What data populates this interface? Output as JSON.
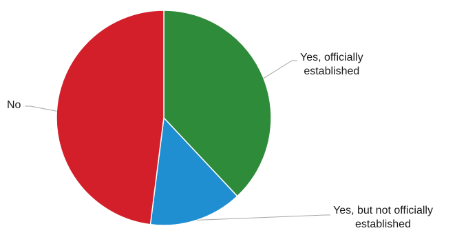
{
  "chart_data": {
    "type": "pie",
    "title": "",
    "slices": [
      {
        "name": "Yes, officially established",
        "label_lines": [
          "Yes, officially",
          "established"
        ],
        "value": 38,
        "color": "#2e8b3a"
      },
      {
        "name": "Yes, but not officially established",
        "label_lines": [
          "Yes, but not officially",
          "established"
        ],
        "value": 14,
        "color": "#1f8fd1"
      },
      {
        "name": "No",
        "label_lines": [
          "No"
        ],
        "value": 48,
        "color": "#d21f2a"
      }
    ],
    "start_angle": "top (12 o'clock), clockwise",
    "legend": "none (leader-line labels)",
    "leader_line_color": "#a6a6a6"
  }
}
